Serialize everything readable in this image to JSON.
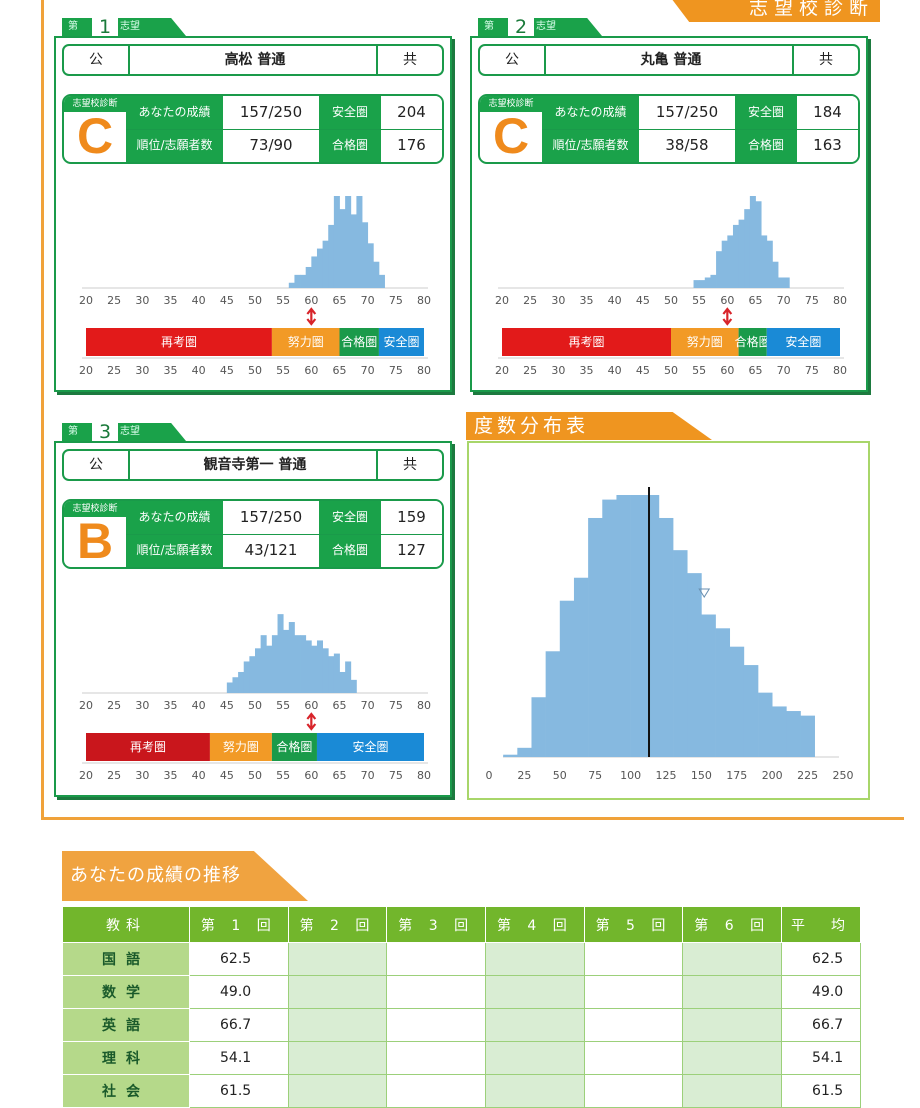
{
  "page_header": "志望校診断",
  "schools": [
    {
      "rank_prefix": "第",
      "rank": "1",
      "rank_suffix": "志望",
      "pub": "公",
      "name": "高松 普通",
      "kyo": "共",
      "diag_label": "志望校診断",
      "grade": "C",
      "score_label": "あなたの成績",
      "score": "157/250",
      "rank_label": "順位/志願者数",
      "rank_value": "73/90",
      "safe_label": "安全圏",
      "safe_value": "204",
      "pass_label": "合格圏",
      "pass_value": "176",
      "zones": [
        {
          "label": "再考圏",
          "from": 20,
          "to": 53,
          "color": "#e21a1a"
        },
        {
          "label": "努力圏",
          "from": 53,
          "to": 65,
          "color": "#f29a26"
        },
        {
          "label": "合格圏",
          "from": 65,
          "to": 72,
          "color": "#1a9a4a"
        },
        {
          "label": "安全圏",
          "from": 72,
          "to": 80,
          "color": "#1a8ad6"
        }
      ],
      "marker": 60,
      "hist": [
        [
          56,
          2
        ],
        [
          57,
          5
        ],
        [
          58,
          5
        ],
        [
          59,
          8
        ],
        [
          60,
          12
        ],
        [
          61,
          15
        ],
        [
          62,
          18
        ],
        [
          63,
          24
        ],
        [
          64,
          35
        ],
        [
          65,
          30
        ],
        [
          66,
          35
        ],
        [
          67,
          28
        ],
        [
          68,
          35
        ],
        [
          69,
          25
        ],
        [
          70,
          17
        ],
        [
          71,
          10
        ],
        [
          72,
          5
        ]
      ]
    },
    {
      "rank_prefix": "第",
      "rank": "2",
      "rank_suffix": "志望",
      "pub": "公",
      "name": "丸亀 普通",
      "kyo": "共",
      "diag_label": "志望校診断",
      "grade": "C",
      "score_label": "あなたの成績",
      "score": "157/250",
      "rank_label": "順位/志願者数",
      "rank_value": "38/58",
      "safe_label": "安全圏",
      "safe_value": "184",
      "pass_label": "合格圏",
      "pass_value": "163",
      "zones": [
        {
          "label": "再考圏",
          "from": 20,
          "to": 50,
          "color": "#e21a1a"
        },
        {
          "label": "努力圏",
          "from": 50,
          "to": 62,
          "color": "#f29a26"
        },
        {
          "label": "合格圏",
          "from": 62,
          "to": 67,
          "color": "#1a9a4a"
        },
        {
          "label": "安全圏",
          "from": 67,
          "to": 80,
          "color": "#1a8ad6"
        }
      ],
      "marker": 60,
      "hist": [
        [
          54,
          3
        ],
        [
          55,
          3
        ],
        [
          56,
          4
        ],
        [
          57,
          5
        ],
        [
          58,
          14
        ],
        [
          59,
          18
        ],
        [
          60,
          20
        ],
        [
          61,
          24
        ],
        [
          62,
          26
        ],
        [
          63,
          30
        ],
        [
          64,
          35
        ],
        [
          65,
          33
        ],
        [
          66,
          20
        ],
        [
          67,
          18
        ],
        [
          68,
          10
        ],
        [
          69,
          4
        ],
        [
          70,
          4
        ]
      ]
    },
    {
      "rank_prefix": "第",
      "rank": "3",
      "rank_suffix": "志望",
      "pub": "公",
      "name": "観音寺第一 普通",
      "kyo": "共",
      "diag_label": "志望校診断",
      "grade": "B",
      "score_label": "あなたの成績",
      "score": "157/250",
      "rank_label": "順位/志願者数",
      "rank_value": "43/121",
      "safe_label": "安全圏",
      "safe_value": "159",
      "pass_label": "合格圏",
      "pass_value": "127",
      "zones": [
        {
          "label": "再考圏",
          "from": 20,
          "to": 42,
          "color": "#c9161c"
        },
        {
          "label": "努力圏",
          "from": 42,
          "to": 53,
          "color": "#f29a26"
        },
        {
          "label": "合格圏",
          "from": 53,
          "to": 61,
          "color": "#1a9a4a"
        },
        {
          "label": "安全圏",
          "from": 61,
          "to": 80,
          "color": "#1a8ad6"
        }
      ],
      "marker": 60,
      "hist": [
        [
          45,
          4
        ],
        [
          46,
          6
        ],
        [
          47,
          8
        ],
        [
          48,
          12
        ],
        [
          49,
          14
        ],
        [
          50,
          17
        ],
        [
          51,
          22
        ],
        [
          52,
          18
        ],
        [
          53,
          22
        ],
        [
          54,
          30
        ],
        [
          55,
          24
        ],
        [
          56,
          27
        ],
        [
          57,
          22
        ],
        [
          58,
          22
        ],
        [
          59,
          20
        ],
        [
          60,
          18
        ],
        [
          61,
          20
        ],
        [
          62,
          17
        ],
        [
          63,
          14
        ],
        [
          64,
          15
        ],
        [
          65,
          8
        ],
        [
          66,
          12
        ],
        [
          67,
          5
        ]
      ]
    }
  ],
  "axis_ticks": [
    "20",
    "25",
    "30",
    "35",
    "40",
    "45",
    "50",
    "55",
    "60",
    "65",
    "70",
    "75",
    "80"
  ],
  "freq": {
    "title": "度数分布表",
    "ticks": [
      "0",
      "25",
      "50",
      "75",
      "100",
      "125",
      "150",
      "175",
      "200",
      "225",
      "250"
    ],
    "bins": [
      [
        10,
        0.5
      ],
      [
        20,
        2
      ],
      [
        30,
        13
      ],
      [
        40,
        23
      ],
      [
        50,
        34
      ],
      [
        60,
        39
      ],
      [
        70,
        52
      ],
      [
        80,
        56
      ],
      [
        90,
        57
      ],
      [
        100,
        57
      ],
      [
        110,
        57
      ],
      [
        120,
        52
      ],
      [
        130,
        45
      ],
      [
        140,
        40
      ],
      [
        150,
        31
      ],
      [
        160,
        28
      ],
      [
        170,
        24
      ],
      [
        180,
        20
      ],
      [
        190,
        14
      ],
      [
        200,
        11
      ],
      [
        210,
        10
      ],
      [
        220,
        9
      ]
    ],
    "student_line": 113,
    "triangle_x": 152
  },
  "trend": {
    "title": "あなたの成績の推移",
    "headers": [
      "教科",
      "第 1 回",
      "第 2 回",
      "第 3 回",
      "第 4 回",
      "第 5 回",
      "第 6 回",
      "平　均"
    ],
    "rows": [
      {
        "subject": "国語",
        "r1": "62.5",
        "avg": "62.5"
      },
      {
        "subject": "数学",
        "r1": "49.0",
        "avg": "49.0"
      },
      {
        "subject": "英語",
        "r1": "66.7",
        "avg": "66.7"
      },
      {
        "subject": "理科",
        "r1": "54.1",
        "avg": "54.1"
      },
      {
        "subject": "社会",
        "r1": "61.5",
        "avg": "61.5"
      }
    ]
  }
}
